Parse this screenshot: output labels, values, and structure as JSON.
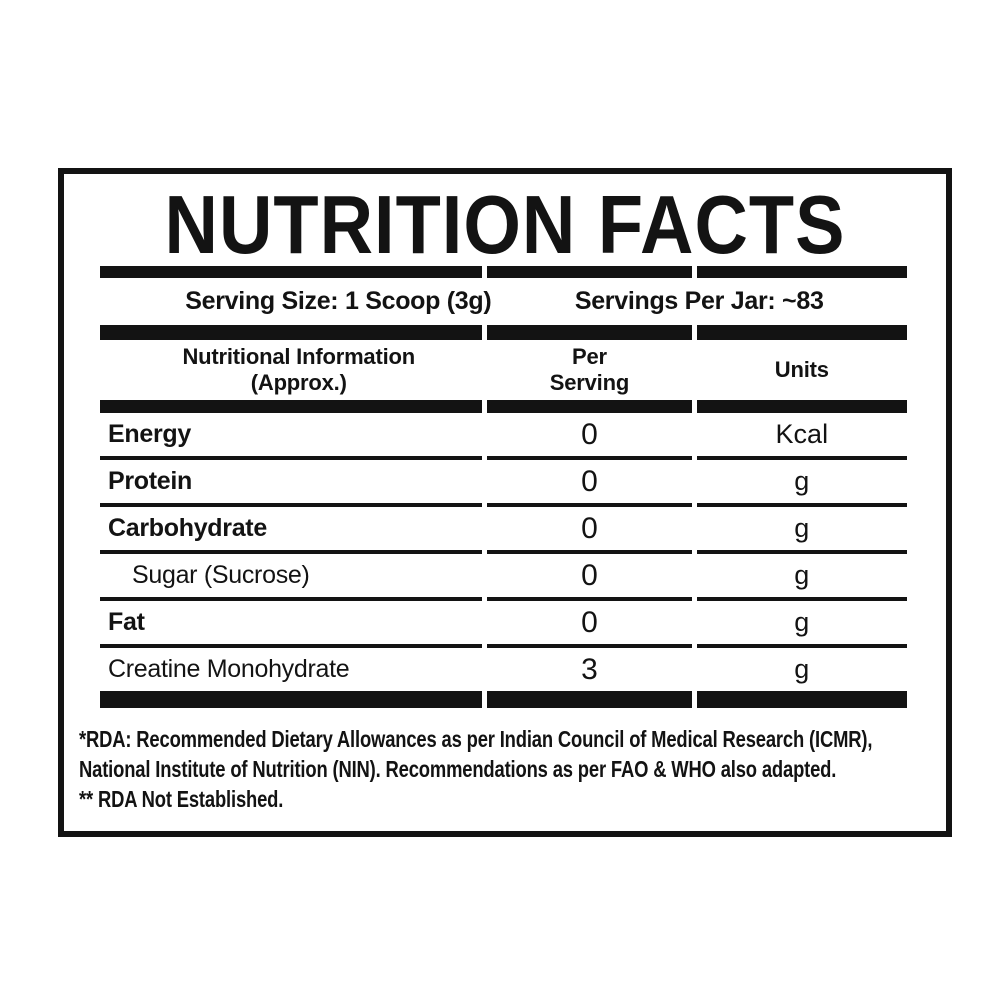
{
  "label": {
    "title": "NUTRITION FACTS",
    "serving": {
      "size_label": "Serving Size: 1 Scoop (3g)",
      "per_jar_label": "Servings Per Jar: ~83"
    },
    "table": {
      "headers": {
        "col1_line1": "Nutritional Information",
        "col1_line2": "(Approx.)",
        "col2_line1": "Per",
        "col2_line2": "Serving",
        "col3": "Units"
      },
      "rows": [
        {
          "name": "Energy",
          "value": "0",
          "unit": "Kcal"
        },
        {
          "name": "Protein",
          "value": "0",
          "unit": "g"
        },
        {
          "name": "Carbohydrate",
          "value": "0",
          "unit": "g"
        },
        {
          "name": "Sugar (Sucrose)",
          "value": "0",
          "unit": "g"
        },
        {
          "name": "Fat",
          "value": "0",
          "unit": "g"
        },
        {
          "name": "Creatine Monohydrate",
          "value": "3",
          "unit": "g"
        }
      ]
    },
    "footnotes": [
      "*RDA: Recommended Dietary Allowances as per Indian Council of Medical Research (ICMR),",
      "National Institute of Nutrition (NIN). Recommendations as per FAO & WHO also adapted.",
      "** RDA Not Established."
    ],
    "colors": {
      "ink": "#131313",
      "background": "#ffffff"
    }
  }
}
